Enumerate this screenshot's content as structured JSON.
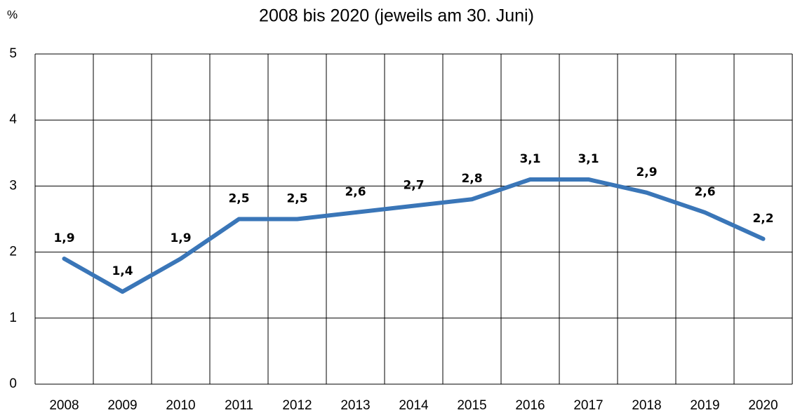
{
  "chart_data": {
    "type": "line",
    "subtitle": "2008 bis 2020 (jeweils am 30. Juni)",
    "y_label": "%",
    "categories": [
      "2008",
      "2009",
      "2010",
      "2011",
      "2012",
      "2013",
      "2014",
      "2015",
      "2016",
      "2017",
      "2018",
      "2019",
      "2020"
    ],
    "values": [
      1.9,
      1.4,
      1.9,
      2.5,
      2.5,
      2.6,
      2.7,
      2.8,
      3.1,
      3.1,
      2.9,
      2.6,
      2.2
    ],
    "value_labels": [
      "1,9",
      "1,4",
      "1,9",
      "2,5",
      "2,5",
      "2,6",
      "2,7",
      "2,8",
      "3,1",
      "3,1",
      "2,9",
      "2,6",
      "2,2"
    ],
    "color": "#3a76b8",
    "ylim": [
      0,
      5
    ],
    "yticks": [
      0,
      1,
      2,
      3,
      4,
      5
    ],
    "grid": true
  }
}
